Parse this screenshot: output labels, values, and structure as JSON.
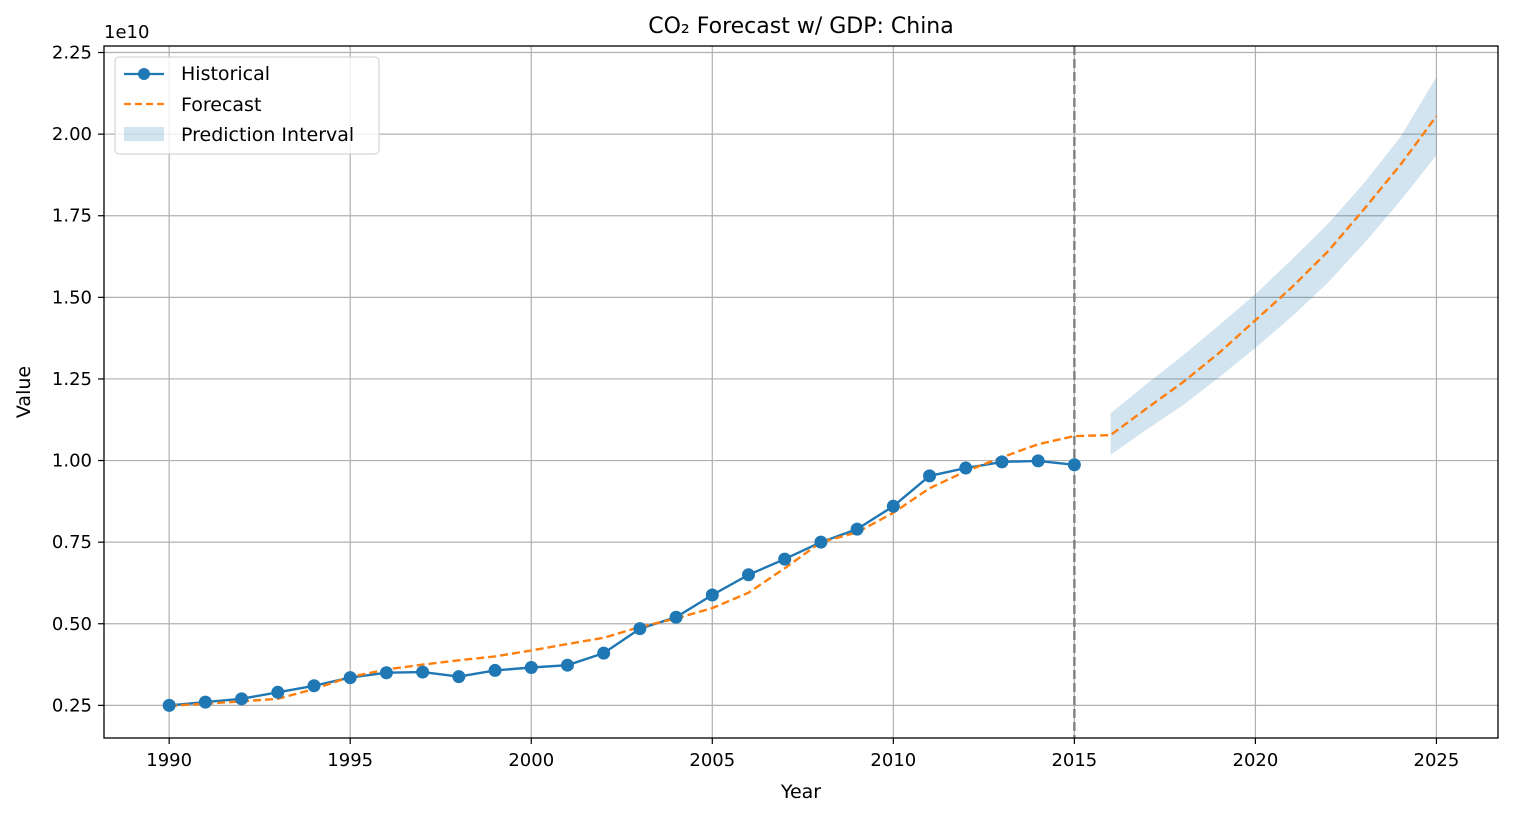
{
  "chart_data": {
    "type": "line",
    "title": "CO₂ Forecast w/ GDP: China",
    "xlabel": "Year",
    "ylabel": "Value",
    "y_offset_label": "1e10",
    "y_scale_multiplier": 10000000000.0,
    "xlim": [
      1988.2,
      2026.7
    ],
    "ylim": [
      0.15,
      2.27
    ],
    "x_ticks": [
      1990,
      1995,
      2000,
      2005,
      2010,
      2015,
      2020,
      2025
    ],
    "y_ticks": [
      0.25,
      0.5,
      0.75,
      1.0,
      1.25,
      1.5,
      1.75,
      2.0,
      2.25
    ],
    "y_tick_labels": [
      "0.25",
      "0.50",
      "0.75",
      "1.00",
      "1.25",
      "1.50",
      "1.75",
      "2.00",
      "2.25"
    ],
    "grid": true,
    "legend_position": "top-left",
    "cutoff_year": 2015,
    "series": [
      {
        "name": "Historical",
        "style": "solid-markers",
        "color": "#1f77b4",
        "x": [
          1990,
          1991,
          1992,
          1993,
          1994,
          1995,
          1996,
          1997,
          1998,
          1999,
          2000,
          2001,
          2002,
          2003,
          2004,
          2005,
          2006,
          2007,
          2008,
          2009,
          2010,
          2011,
          2012,
          2013,
          2014,
          2015
        ],
        "values": [
          0.25,
          0.26,
          0.27,
          0.29,
          0.31,
          0.335,
          0.35,
          0.352,
          0.338,
          0.357,
          0.366,
          0.373,
          0.41,
          0.485,
          0.52,
          0.588,
          0.65,
          0.698,
          0.75,
          0.79,
          0.86,
          0.953,
          0.977,
          0.996,
          0.999,
          0.987
        ]
      },
      {
        "name": "Forecast",
        "style": "dashed",
        "color": "#ff7f0e",
        "x": [
          1990,
          1991,
          1992,
          1993,
          1994,
          1995,
          1996,
          1997,
          1998,
          1999,
          2000,
          2001,
          2002,
          2003,
          2004,
          2005,
          2006,
          2007,
          2008,
          2009,
          2010,
          2011,
          2012,
          2013,
          2014,
          2015,
          2016,
          2017,
          2018,
          2019,
          2020,
          2021,
          2022,
          2023,
          2024,
          2025
        ],
        "values": [
          0.248,
          0.255,
          0.262,
          0.27,
          0.3,
          0.337,
          0.36,
          0.375,
          0.388,
          0.4,
          0.418,
          0.438,
          0.457,
          0.49,
          0.516,
          0.548,
          0.595,
          0.67,
          0.75,
          0.78,
          0.84,
          0.915,
          0.967,
          1.01,
          1.05,
          1.075,
          1.078,
          1.16,
          1.24,
          1.33,
          1.43,
          1.53,
          1.64,
          1.77,
          1.905,
          2.055
        ]
      }
    ],
    "prediction_interval": {
      "name": "Prediction Interval",
      "color": "#1f77b4",
      "opacity": 0.2,
      "x": [
        2016,
        2017,
        2018,
        2019,
        2020,
        2021,
        2022,
        2023,
        2024,
        2025
      ],
      "lower": [
        1.018,
        1.095,
        1.17,
        1.255,
        1.345,
        1.44,
        1.545,
        1.665,
        1.795,
        1.935
      ],
      "upper": [
        1.145,
        1.235,
        1.322,
        1.415,
        1.51,
        1.615,
        1.725,
        1.85,
        1.99,
        2.175
      ]
    }
  }
}
